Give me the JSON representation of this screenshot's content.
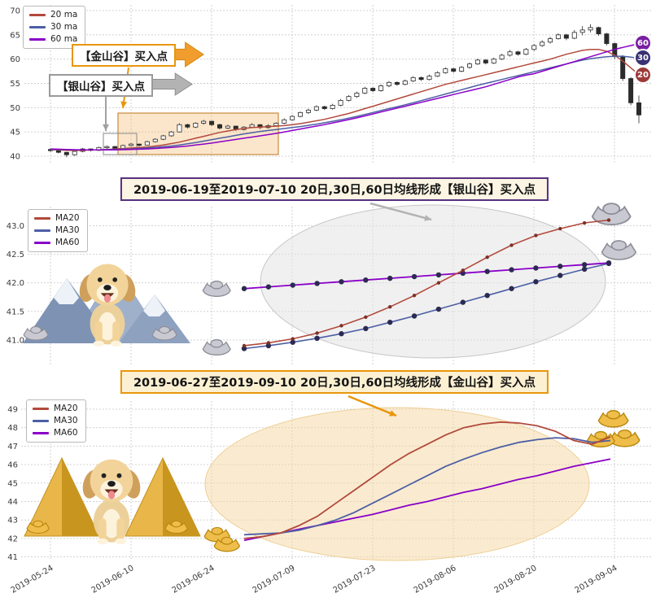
{
  "colors": {
    "ma20": "#b2493c",
    "ma30": "#4c5fa5",
    "ma60": "#8a00c8",
    "candle": "#2b2b2b",
    "grid": "#cccccc",
    "gold": "#eebd4a",
    "gold_dark": "#b8860b",
    "silver": "#c9c9d2",
    "silver_dark": "#8d8d98",
    "ellipse_silver": "#e4e4e4",
    "ellipse_gold": "#f6d8a2",
    "arrow_orange": "#f09d2e",
    "arrow_gray": "#b3b3b3",
    "highlight_rect_fill": "#f3b260",
    "highlight_rect_stroke": "#c98a3c"
  },
  "top_panel": {
    "golden_annotation": "【金山谷】买入点",
    "silver_annotation": "【银山谷】买入点",
    "badges": [
      {
        "label": "60",
        "color": "#7a1fa2",
        "value": 63.2
      },
      {
        "label": "30",
        "color": "#3a3175",
        "value": 60.2
      },
      {
        "label": "20",
        "color": "#9c3a38",
        "value": 56.8
      }
    ]
  },
  "chart_data": [
    {
      "type": "candlestick",
      "panel": "top",
      "x_range": [
        "2019-05-24",
        "2019-09-10"
      ],
      "ylim": [
        39,
        70.5
      ],
      "y_ticks": [
        {
          "v": 70,
          "label": "70"
        },
        {
          "v": 65,
          "label": "65"
        },
        {
          "v": 60,
          "label": "60"
        },
        {
          "v": 55,
          "label": "55"
        },
        {
          "v": 50,
          "label": "50"
        },
        {
          "v": 45,
          "label": "45"
        },
        {
          "v": 40,
          "label": "40"
        }
      ],
      "grid": true,
      "legend_position": "upper-left",
      "candles": [
        [
          41.4,
          41.6,
          40.9,
          41.2
        ],
        [
          41.2,
          41.3,
          40.6,
          40.8
        ],
        [
          40.8,
          40.9,
          39.8,
          40.3
        ],
        [
          40.3,
          41.2,
          40.1,
          41.0
        ],
        [
          41.0,
          41.7,
          40.8,
          41.5
        ],
        [
          41.5,
          41.6,
          41.0,
          41.2
        ],
        [
          41.2,
          42.0,
          41.1,
          41.8
        ],
        [
          41.8,
          42.2,
          41.5,
          42.0
        ],
        [
          42.0,
          42.1,
          41.4,
          41.6
        ],
        [
          41.6,
          42.4,
          41.5,
          42.2
        ],
        [
          42.2,
          42.7,
          42.0,
          42.5
        ],
        [
          42.5,
          42.6,
          42.0,
          42.3
        ],
        [
          42.3,
          43.2,
          42.2,
          43.0
        ],
        [
          43.0,
          43.7,
          42.8,
          43.5
        ],
        [
          43.5,
          44.4,
          43.3,
          44.2
        ],
        [
          44.2,
          45.2,
          44.0,
          45.0
        ],
        [
          45.0,
          46.8,
          44.9,
          46.5
        ],
        [
          46.5,
          46.7,
          45.7,
          46.0
        ],
        [
          46.0,
          47.0,
          45.8,
          46.8
        ],
        [
          46.8,
          47.5,
          46.5,
          47.2
        ],
        [
          47.2,
          47.3,
          46.2,
          46.5
        ],
        [
          46.5,
          46.7,
          45.5,
          45.8
        ],
        [
          45.8,
          46.5,
          45.6,
          46.2
        ],
        [
          46.2,
          46.3,
          45.2,
          45.5
        ],
        [
          45.5,
          46.2,
          45.3,
          46.0
        ],
        [
          46.0,
          46.8,
          45.8,
          46.5
        ],
        [
          46.5,
          46.6,
          45.6,
          45.9
        ],
        [
          45.9,
          46.6,
          45.7,
          46.3
        ],
        [
          46.3,
          47.0,
          46.1,
          46.8
        ],
        [
          46.8,
          47.8,
          46.6,
          47.5
        ],
        [
          47.5,
          48.5,
          47.3,
          48.2
        ],
        [
          48.2,
          49.2,
          48.0,
          49.0
        ],
        [
          49.0,
          49.8,
          48.7,
          49.5
        ],
        [
          49.5,
          50.5,
          49.3,
          50.2
        ],
        [
          50.2,
          50.4,
          49.5,
          49.8
        ],
        [
          49.8,
          50.8,
          49.6,
          50.5
        ],
        [
          50.5,
          51.8,
          50.3,
          51.5
        ],
        [
          51.5,
          52.6,
          51.3,
          52.3
        ],
        [
          52.3,
          53.3,
          52.0,
          53.0
        ],
        [
          53.0,
          54.3,
          52.8,
          54.0
        ],
        [
          54.0,
          54.2,
          53.2,
          53.5
        ],
        [
          53.5,
          54.8,
          53.3,
          54.5
        ],
        [
          54.5,
          55.5,
          54.2,
          55.2
        ],
        [
          55.2,
          55.4,
          54.5,
          54.8
        ],
        [
          54.8,
          55.8,
          54.6,
          55.5
        ],
        [
          55.5,
          56.5,
          55.3,
          56.2
        ],
        [
          56.2,
          56.4,
          55.5,
          55.8
        ],
        [
          55.8,
          56.8,
          55.6,
          56.5
        ],
        [
          56.5,
          57.5,
          56.3,
          57.2
        ],
        [
          57.2,
          58.3,
          57.0,
          58.0
        ],
        [
          58.0,
          58.2,
          57.2,
          57.5
        ],
        [
          57.5,
          58.6,
          57.3,
          58.3
        ],
        [
          58.3,
          59.3,
          58.0,
          59.0
        ],
        [
          59.0,
          60.1,
          58.8,
          59.8
        ],
        [
          59.8,
          60.0,
          58.9,
          59.2
        ],
        [
          59.2,
          60.3,
          59.0,
          60.0
        ],
        [
          60.0,
          61.1,
          59.8,
          60.8
        ],
        [
          60.8,
          61.9,
          60.5,
          61.5
        ],
        [
          61.5,
          61.7,
          60.7,
          61.0
        ],
        [
          61.0,
          62.3,
          60.8,
          62.0
        ],
        [
          62.0,
          63.1,
          61.7,
          62.8
        ],
        [
          62.8,
          63.9,
          62.5,
          63.5
        ],
        [
          63.5,
          64.6,
          63.2,
          64.2
        ],
        [
          64.2,
          65.3,
          64.0,
          65.0
        ],
        [
          65.0,
          65.2,
          63.9,
          64.3
        ],
        [
          64.3,
          66.0,
          64.1,
          65.5
        ],
        [
          65.5,
          66.8,
          64.9,
          66.0
        ],
        [
          66.0,
          67.2,
          65.5,
          66.5
        ],
        [
          66.5,
          66.7,
          64.8,
          65.2
        ],
        [
          65.2,
          65.4,
          62.8,
          63.2
        ],
        [
          63.2,
          63.4,
          60.0,
          60.5
        ],
        [
          60.5,
          60.8,
          55.5,
          56.0
        ],
        [
          56.0,
          56.3,
          50.5,
          51.0
        ],
        [
          51.0,
          52.5,
          46.8,
          48.5
        ]
      ],
      "series": [
        {
          "name": "20 ma",
          "color": "#b2493c",
          "values": [
            41.3,
            41.3,
            41.2,
            41.2,
            41.2,
            41.3,
            41.3,
            41.4,
            41.5,
            41.6,
            41.7,
            41.8,
            41.9,
            42.1,
            42.3,
            42.6,
            42.9,
            43.3,
            43.7,
            44.1,
            44.5,
            44.9,
            45.2,
            45.5,
            45.7,
            45.9,
            46.0,
            46.1,
            46.2,
            46.3,
            46.5,
            46.7,
            47.0,
            47.3,
            47.6,
            48.0,
            48.4,
            48.8,
            49.3,
            49.8,
            50.3,
            50.8,
            51.3,
            51.8,
            52.3,
            52.8,
            53.3,
            53.8,
            54.3,
            54.8,
            55.2,
            55.6,
            56.0,
            56.4,
            56.8,
            57.2,
            57.6,
            58.0,
            58.4,
            58.8,
            59.2,
            59.6,
            60.0,
            60.5,
            61.0,
            61.4,
            61.8,
            62.0,
            62.0,
            61.6,
            60.8,
            59.6,
            58.2,
            56.8
          ]
        },
        {
          "name": "30 ma",
          "color": "#4c5fa5",
          "values": [
            41.4,
            41.4,
            41.35,
            41.3,
            41.3,
            41.3,
            41.3,
            41.35,
            41.4,
            41.45,
            41.5,
            41.6,
            41.7,
            41.8,
            41.95,
            42.1,
            42.3,
            42.55,
            42.8,
            43.1,
            43.4,
            43.7,
            44.0,
            44.3,
            44.6,
            44.85,
            45.1,
            45.3,
            45.5,
            45.7,
            45.9,
            46.1,
            46.35,
            46.6,
            46.9,
            47.2,
            47.5,
            47.85,
            48.2,
            48.6,
            49.0,
            49.4,
            49.8,
            50.2,
            50.6,
            51.0,
            51.45,
            51.9,
            52.35,
            52.8,
            53.25,
            53.7,
            54.15,
            54.6,
            55.0,
            55.4,
            55.8,
            56.2,
            56.6,
            57.0,
            57.4,
            57.8,
            58.2,
            58.6,
            59.0,
            59.4,
            59.8,
            60.1,
            60.3,
            60.5,
            60.6,
            60.6,
            60.4,
            60.2
          ]
        },
        {
          "name": "60 ma",
          "color": "#8a00c8",
          "values": [
            41.5,
            41.45,
            41.4,
            41.35,
            41.3,
            41.3,
            41.3,
            41.3,
            41.3,
            41.35,
            41.4,
            41.45,
            41.5,
            41.6,
            41.7,
            41.8,
            41.95,
            42.1,
            42.3,
            42.5,
            42.7,
            42.95,
            43.2,
            43.45,
            43.7,
            43.95,
            44.2,
            44.45,
            44.7,
            45.0,
            45.3,
            45.6,
            45.9,
            46.2,
            46.5,
            46.85,
            47.2,
            47.55,
            47.9,
            48.3,
            48.7,
            49.1,
            49.5,
            49.9,
            50.3,
            50.7,
            51.1,
            51.5,
            51.9,
            52.3,
            52.7,
            53.1,
            53.5,
            53.9,
            54.3,
            54.8,
            55.3,
            55.8,
            56.3,
            56.7,
            57.0,
            57.5,
            58.0,
            58.5,
            59.0,
            59.5,
            60.0,
            60.5,
            61.0,
            61.5,
            62.0,
            62.4,
            62.8,
            63.2
          ]
        }
      ]
    },
    {
      "type": "line",
      "panel": "middle",
      "title": "2019-06-19至2019-07-10 20日,30日,60日均线形成【银山谷】买入点",
      "x_range": [
        "2019-06-19",
        "2019-07-10"
      ],
      "ylim": [
        40.6,
        43.25
      ],
      "y_ticks": [
        {
          "v": 43.0,
          "label": "43.0"
        },
        {
          "v": 42.5,
          "label": "42.5"
        },
        {
          "v": 42.0,
          "label": "42.0"
        },
        {
          "v": 41.5,
          "label": "41.5"
        },
        {
          "v": 41.0,
          "label": "41.0"
        }
      ],
      "grid": true,
      "markers": true,
      "series": [
        {
          "name": "MA20",
          "color": "#b2493c",
          "values": [
            40.9,
            40.95,
            41.02,
            41.12,
            41.25,
            41.4,
            41.58,
            41.78,
            42.0,
            42.22,
            42.45,
            42.66,
            42.83,
            42.95,
            43.05,
            43.1
          ]
        },
        {
          "name": "MA30",
          "color": "#4c5fa5",
          "values": [
            40.85,
            40.9,
            40.96,
            41.03,
            41.11,
            41.2,
            41.31,
            41.42,
            41.54,
            41.66,
            41.78,
            41.9,
            42.02,
            42.13,
            42.24,
            42.34
          ]
        },
        {
          "name": "MA60",
          "color": "#8a00c8",
          "values": [
            41.9,
            41.93,
            41.96,
            41.99,
            42.02,
            42.05,
            42.08,
            42.11,
            42.14,
            42.17,
            42.2,
            42.23,
            42.26,
            42.29,
            42.32,
            42.35
          ]
        }
      ]
    },
    {
      "type": "line",
      "panel": "bottom",
      "title": "2019-06-27至2019-09-10 20日,30日,60日均线形成【金山谷】买入点",
      "x_range": [
        "2019-06-27",
        "2019-09-10"
      ],
      "ylim": [
        40.85,
        49.35
      ],
      "y_ticks": [
        {
          "v": 49,
          "label": "49"
        },
        {
          "v": 48,
          "label": "48"
        },
        {
          "v": 47,
          "label": "47"
        },
        {
          "v": 46,
          "label": "46"
        },
        {
          "v": 45,
          "label": "45"
        },
        {
          "v": 44,
          "label": "44"
        },
        {
          "v": 43,
          "label": "43"
        },
        {
          "v": 42,
          "label": "42"
        },
        {
          "v": 41,
          "label": "41"
        }
      ],
      "x_tick_labels": [
        "2019-05-24",
        "2019-06-10",
        "2019-06-24",
        "2019-07-09",
        "2019-07-23",
        "2019-08-06",
        "2019-08-20",
        "2019-09-04"
      ],
      "grid": true,
      "markers": false,
      "series": [
        {
          "name": "MA20",
          "color": "#b2493c",
          "values": [
            42.0,
            42.1,
            42.3,
            42.7,
            43.2,
            43.9,
            44.6,
            45.3,
            46.0,
            46.6,
            47.1,
            47.6,
            48.0,
            48.2,
            48.3,
            48.25,
            48.1,
            47.8,
            47.3,
            47.1,
            47.5
          ]
        },
        {
          "name": "MA30",
          "color": "#4c5fa5",
          "values": [
            42.2,
            42.25,
            42.3,
            42.45,
            42.7,
            43.0,
            43.4,
            43.9,
            44.4,
            44.9,
            45.4,
            45.9,
            46.3,
            46.65,
            46.95,
            47.2,
            47.35,
            47.45,
            47.4,
            47.2,
            47.3
          ]
        },
        {
          "name": "MA60",
          "color": "#8a00c8",
          "values": [
            41.9,
            42.1,
            42.3,
            42.5,
            42.7,
            42.9,
            43.1,
            43.3,
            43.55,
            43.8,
            44.0,
            44.25,
            44.5,
            44.7,
            44.95,
            45.2,
            45.4,
            45.65,
            45.9,
            46.1,
            46.3
          ]
        }
      ]
    }
  ]
}
